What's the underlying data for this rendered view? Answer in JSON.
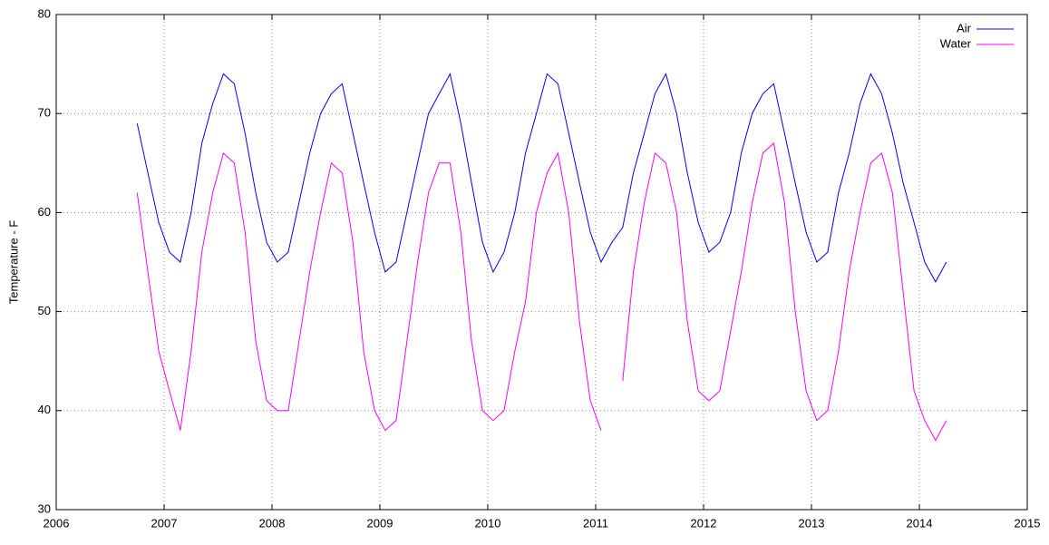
{
  "chart_data": {
    "type": "line",
    "y_label": "Temperature - F",
    "x": [
      2006.75,
      2006.85,
      2006.95,
      2007.05,
      2007.15,
      2007.25,
      2007.35,
      2007.45,
      2007.55,
      2007.65,
      2007.75,
      2007.85,
      2007.95,
      2008.05,
      2008.15,
      2008.25,
      2008.35,
      2008.45,
      2008.55,
      2008.65,
      2008.75,
      2008.85,
      2008.95,
      2009.05,
      2009.15,
      2009.25,
      2009.35,
      2009.45,
      2009.55,
      2009.65,
      2009.75,
      2009.85,
      2009.95,
      2010.05,
      2010.15,
      2010.25,
      2010.35,
      2010.45,
      2010.55,
      2010.65,
      2010.75,
      2010.85,
      2010.95,
      2011.05,
      2011.15,
      2011.25,
      2011.35,
      2011.45,
      2011.55,
      2011.65,
      2011.75,
      2011.85,
      2011.95,
      2012.05,
      2012.15,
      2012.25,
      2012.35,
      2012.45,
      2012.55,
      2012.65,
      2012.75,
      2012.85,
      2012.95,
      2013.05,
      2013.15,
      2013.25,
      2013.35,
      2013.45,
      2013.55,
      2013.65,
      2013.75,
      2013.85,
      2013.95,
      2014.05,
      2014.15,
      2014.25
    ],
    "series": [
      {
        "name": "Air",
        "color": "#0000ff",
        "values": [
          69,
          64,
          59,
          56,
          55,
          60,
          67,
          71,
          74,
          73,
          68,
          62,
          57,
          55,
          56,
          61,
          66,
          70,
          72,
          73,
          68,
          63,
          58,
          54,
          55,
          60,
          65,
          70,
          72,
          74,
          69,
          63,
          57,
          54,
          56,
          60,
          66,
          70,
          74,
          73,
          68,
          63,
          58,
          55,
          57,
          58.5,
          64,
          68,
          72,
          74,
          70,
          64,
          59,
          56,
          57,
          60,
          66,
          70,
          72,
          73,
          68,
          63,
          58,
          55,
          56,
          62,
          66,
          71,
          74,
          72,
          68,
          63,
          59,
          55,
          53,
          55
        ]
      },
      {
        "name": "Water",
        "color": "#ff00ff",
        "values": [
          62,
          54,
          46,
          42,
          38,
          46,
          56,
          62,
          66,
          65,
          58,
          47,
          41,
          40,
          40,
          47,
          54,
          60,
          65,
          64,
          57,
          46,
          40,
          38,
          39,
          47,
          55,
          62,
          65,
          65,
          58,
          47,
          40,
          39,
          40,
          46,
          51,
          60,
          64,
          66,
          60,
          49,
          41,
          38,
          null,
          43,
          54,
          61,
          66,
          65,
          60,
          49,
          42,
          41,
          42,
          48,
          54,
          61,
          66,
          67,
          61,
          50,
          42,
          39,
          40,
          46,
          54,
          60,
          65,
          66,
          62,
          52,
          42,
          39,
          37,
          39
        ]
      }
    ],
    "xlim": [
      2006,
      2015
    ],
    "xticks": [
      2006,
      2007,
      2008,
      2009,
      2010,
      2011,
      2012,
      2013,
      2014,
      2015
    ],
    "ylim": [
      30,
      80
    ],
    "yticks": [
      30,
      40,
      50,
      60,
      70,
      80
    ],
    "grid": true,
    "legend": "top-right"
  }
}
